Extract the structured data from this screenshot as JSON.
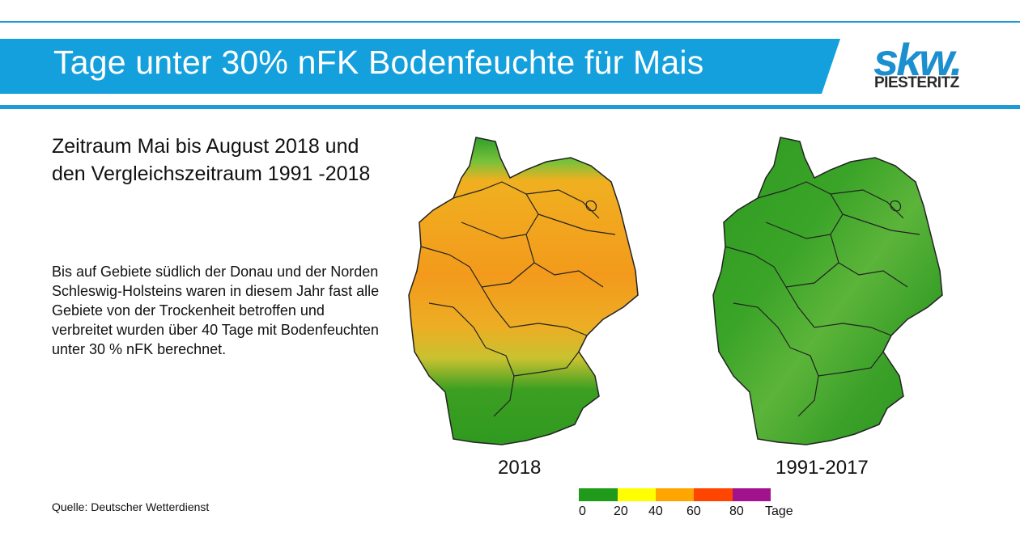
{
  "title": "Tage unter 30% nFK Bodenfeuchte für Mais",
  "logo": {
    "main": "skw.",
    "sub": "PIESTERITZ"
  },
  "heading": [
    "Zeitraum Mai bis August 2018 und",
    "den Vergleichszeitraum 1991 -2018"
  ],
  "body": "Bis auf Gebiete südlich der Donau und der Norden Schleswig-Holsteins waren in diesem Jahr fast alle Gebiete von der Trockenheit betroffen und verbreitet wurden über 40 Tage mit Bodenfeuchten unter 30 % nFK berechnet.",
  "source": "Quelle: Deutscher Wetterdienst",
  "maps": [
    {
      "label": "2018",
      "palette": [
        "#f0a020",
        "#e6b020",
        "#f08a18",
        "#2f9c22"
      ]
    },
    {
      "label": "1991-2017",
      "palette": [
        "#3aa22a",
        "#4fae32",
        "#6cbf44",
        "#2a9420"
      ]
    }
  ],
  "legend": {
    "colors": [
      "#1f9a1a",
      "#ffff00",
      "#ffa500",
      "#ff4500",
      "#a2128c"
    ],
    "ticks": [
      "0",
      "20",
      "40",
      "60",
      "80"
    ],
    "unit": "Tage"
  },
  "colors": {
    "accent": "#1e9ad6",
    "banner": "#14a0dc"
  }
}
